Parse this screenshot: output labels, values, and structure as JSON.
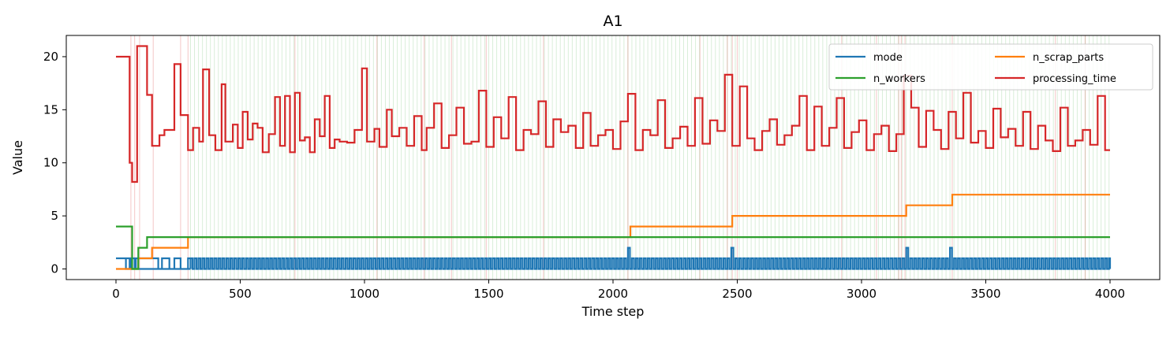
{
  "chart_data": {
    "type": "line",
    "step": true,
    "title": "A1",
    "xlabel": "Time step",
    "ylabel": "Value",
    "xlim": [
      -200,
      4200
    ],
    "ylim": [
      -1,
      22
    ],
    "xticks": [
      0,
      500,
      1000,
      1500,
      2000,
      2500,
      3000,
      3500,
      4000
    ],
    "yticks": [
      0,
      5,
      10,
      15,
      20
    ],
    "legend": {
      "placement": "top-right",
      "columns": 2
    },
    "series": [
      {
        "name": "mode",
        "color": "#1f77b4",
        "pattern": "toggle",
        "x": [
          0,
          40,
          260,
          300,
          4000
        ],
        "y": [
          1,
          0,
          0,
          0,
          0
        ],
        "toggle_from": 300,
        "toggle_to": 4000,
        "toggle_period": 16,
        "spikes_x": [
          2065,
          2480,
          3180,
          3365
        ],
        "spikes_y": 2
      },
      {
        "name": "n_scrap_parts",
        "color": "#ff7f0e",
        "x": [
          0,
          90,
          145,
          290,
          2070,
          2480,
          3180,
          3365,
          4000
        ],
        "y": [
          0,
          1,
          2,
          3,
          4,
          5,
          6,
          7,
          7
        ]
      },
      {
        "name": "n_workers",
        "color": "#2ca02c",
        "x": [
          0,
          65,
          90,
          125,
          4000
        ],
        "y": [
          4,
          0,
          2,
          3,
          3
        ]
      },
      {
        "name": "processing_time",
        "color": "#d62728",
        "x": [
          0,
          55,
          65,
          85,
          125,
          145,
          175,
          195,
          235,
          260,
          290,
          310,
          335,
          350,
          375,
          400,
          425,
          440,
          470,
          490,
          510,
          530,
          550,
          570,
          590,
          615,
          640,
          660,
          680,
          700,
          720,
          740,
          760,
          780,
          800,
          820,
          840,
          860,
          880,
          900,
          930,
          960,
          990,
          1010,
          1040,
          1060,
          1090,
          1110,
          1140,
          1170,
          1200,
          1230,
          1250,
          1280,
          1310,
          1340,
          1370,
          1400,
          1430,
          1460,
          1490,
          1520,
          1550,
          1580,
          1610,
          1640,
          1670,
          1700,
          1730,
          1760,
          1790,
          1820,
          1850,
          1880,
          1910,
          1940,
          1970,
          2000,
          2030,
          2060,
          2090,
          2120,
          2150,
          2180,
          2210,
          2240,
          2270,
          2300,
          2330,
          2360,
          2390,
          2420,
          2450,
          2480,
          2510,
          2540,
          2570,
          2600,
          2630,
          2660,
          2690,
          2720,
          2750,
          2780,
          2810,
          2840,
          2870,
          2900,
          2930,
          2960,
          2990,
          3020,
          3050,
          3080,
          3110,
          3140,
          3170,
          3200,
          3230,
          3260,
          3290,
          3320,
          3350,
          3380,
          3410,
          3440,
          3470,
          3500,
          3530,
          3560,
          3590,
          3620,
          3650,
          3680,
          3710,
          3740,
          3770,
          3800,
          3830,
          3860,
          3890,
          3920,
          3950,
          3980,
          4000
        ],
        "y": [
          20,
          10,
          8.2,
          21,
          16.4,
          11.6,
          12.6,
          13.1,
          19.3,
          14.5,
          11.2,
          13.3,
          12.0,
          18.8,
          12.6,
          11.2,
          17.4,
          12.0,
          13.6,
          11.4,
          14.8,
          12.2,
          13.7,
          13.3,
          11.0,
          12.7,
          16.2,
          11.6,
          16.3,
          11.0,
          16.6,
          12.1,
          12.4,
          11.0,
          14.1,
          12.5,
          16.3,
          11.4,
          12.2,
          12.0,
          11.9,
          13.1,
          18.9,
          12.0,
          13.2,
          11.5,
          15.0,
          12.5,
          13.3,
          11.6,
          14.4,
          11.2,
          13.3,
          15.6,
          11.4,
          12.6,
          15.2,
          11.8,
          12.0,
          16.8,
          11.5,
          14.3,
          12.3,
          16.2,
          11.2,
          13.1,
          12.7,
          15.8,
          11.5,
          14.1,
          12.9,
          13.5,
          11.4,
          14.7,
          11.6,
          12.6,
          13.1,
          11.3,
          13.9,
          16.5,
          11.2,
          13.1,
          12.6,
          15.9,
          11.4,
          12.3,
          13.4,
          11.6,
          16.1,
          11.8,
          14.0,
          13.0,
          18.3,
          11.6,
          17.2,
          12.3,
          11.2,
          13.0,
          14.1,
          11.7,
          12.6,
          13.5,
          16.3,
          11.2,
          15.3,
          11.6,
          13.3,
          16.1,
          11.4,
          12.9,
          14.0,
          11.2,
          12.7,
          13.5,
          11.1,
          12.7,
          18.2,
          15.2,
          11.5,
          14.9,
          13.1,
          11.3,
          14.8,
          12.3,
          16.6,
          11.9,
          13.0,
          11.4,
          15.1,
          12.4,
          13.2,
          11.6,
          14.8,
          11.3,
          13.5,
          12.1,
          11.1,
          15.2,
          11.6,
          12.1,
          13.1,
          11.7,
          16.3,
          11.2,
          11.2
        ]
      }
    ],
    "background_vlines": {
      "green": {
        "color": "#2ca02c",
        "from": 300,
        "to": 4000,
        "step": 16
      },
      "red": {
        "color": "#d62728",
        "x": [
          60,
          75,
          95,
          150,
          260,
          290,
          720,
          1050,
          1240,
          1350,
          1490,
          1720,
          2060,
          2350,
          2460,
          2480,
          2500,
          2920,
          3060,
          3150,
          3160,
          3175,
          3365,
          3780,
          3900
        ]
      }
    }
  }
}
